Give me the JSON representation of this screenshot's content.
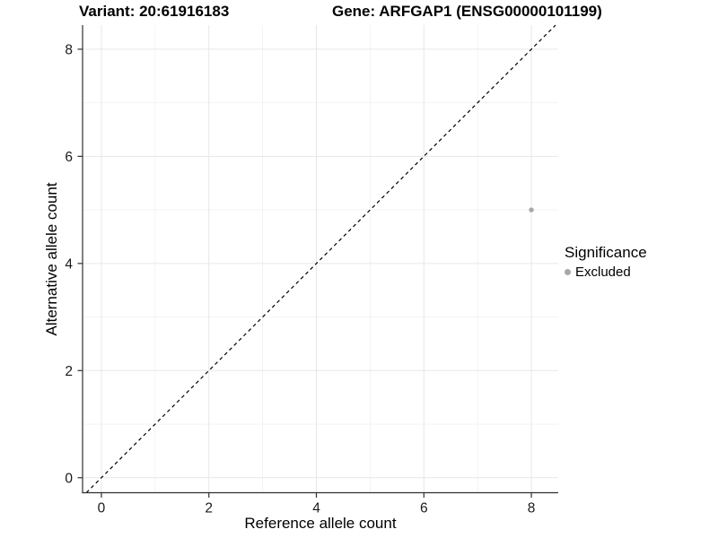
{
  "header": {
    "variant": "Variant: 20:61916183",
    "gene": "Gene: ARFGAP1 (ENSG00000101199)"
  },
  "legend": {
    "title": "Significance",
    "items": [
      {
        "label": "Excluded",
        "color": "#a8a8a8"
      }
    ]
  },
  "chart_data": {
    "type": "scatter",
    "title": "Variant: 20:61916183   Gene: ARFGAP1 (ENSG00000101199)",
    "xlabel": "Reference allele count",
    "ylabel": "Alternative allele count",
    "x_ticks": [
      0,
      2,
      4,
      6,
      8
    ],
    "y_ticks": [
      0,
      2,
      4,
      6,
      8
    ],
    "x_minor_ticks": [
      1,
      3,
      5,
      7
    ],
    "y_minor_ticks": [
      1,
      3,
      5,
      7
    ],
    "xlim": [
      -0.35,
      8.5
    ],
    "ylim": [
      -0.28,
      8.45
    ],
    "grid": "major+minor",
    "legend_position": "right",
    "series": [
      {
        "name": "Excluded",
        "color": "#a8a8a8",
        "points": [
          {
            "x": 8,
            "y": 5
          }
        ]
      }
    ],
    "reference_line": {
      "slope": 1,
      "intercept": 0,
      "style": "dashed",
      "color": "#000000"
    }
  },
  "colors": {
    "axis": "#2f2f2f",
    "tick": "#2f2f2f",
    "tick_text": "#1a1a1a",
    "grid_major": "#e7e7e7",
    "grid_minor": "#f2f2f2",
    "background": "#ffffff"
  }
}
